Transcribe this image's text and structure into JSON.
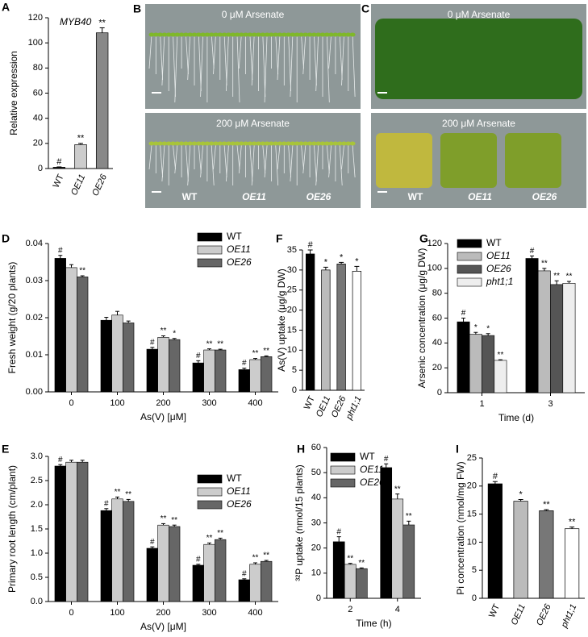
{
  "chart_data": [
    {
      "panel": "A",
      "type": "bar",
      "title": "MYB40",
      "ylabel": "Relative expression",
      "categories": [
        "WT",
        "OE11",
        "OE26"
      ],
      "values": [
        1,
        19,
        108
      ],
      "errors": [
        0.3,
        1,
        4
      ],
      "significance": [
        "#",
        "**",
        "**"
      ],
      "colors": [
        "#111111",
        "#cccccc",
        "#888888"
      ],
      "ylim": [
        0,
        120
      ],
      "yticks": [
        0,
        20,
        40,
        60,
        80,
        100,
        120
      ]
    },
    {
      "panel": "D",
      "type": "grouped-bar",
      "ylabel": "Fresh weight (g/20 plants)",
      "xlabel": "As(V) [μM]",
      "categories": [
        "0",
        "100",
        "200",
        "300",
        "400"
      ],
      "series": [
        {
          "name": "WT",
          "color": "#000000",
          "values": [
            0.036,
            0.0193,
            0.0115,
            0.0078,
            0.006
          ],
          "errors": [
            0.0008,
            0.0008,
            0.0005,
            0.0006,
            0.0004
          ],
          "significance": [
            "#",
            null,
            "#",
            "#",
            "#"
          ]
        },
        {
          "name": "OE11",
          "color": "#cccccc",
          "values": [
            0.0335,
            0.0207,
            0.0147,
            0.0113,
            0.0087
          ],
          "errors": [
            0.0008,
            0.001,
            0.0004,
            0.0003,
            0.0003
          ],
          "significance": [
            null,
            null,
            "**",
            "**",
            "**"
          ]
        },
        {
          "name": "OE26",
          "color": "#666666",
          "values": [
            0.031,
            0.0186,
            0.0141,
            0.0113,
            0.0095
          ],
          "errors": [
            0.0003,
            0.0005,
            0.0003,
            0.0002,
            0.0002
          ],
          "significance": [
            "**",
            null,
            "*",
            "**",
            "**"
          ]
        }
      ],
      "ylim": [
        0,
        0.04
      ],
      "yticks": [
        {
          "value": 0,
          "label": "0.00"
        },
        0.01,
        0.02,
        0.03,
        0.04
      ],
      "legend": "upper right"
    },
    {
      "panel": "F",
      "type": "bar",
      "ylabel": "As(V) uptake (μg/g DW)",
      "categories": [
        "WT",
        "OE11",
        "OE26",
        "pht1;1"
      ],
      "values": [
        34,
        30,
        31.5,
        29.7
      ],
      "errors": [
        1,
        0.7,
        0.4,
        1.2
      ],
      "significance": [
        "#",
        "*",
        "*",
        "*"
      ],
      "colors": [
        "#000000",
        "#bbbbbb",
        "#777777",
        "#ffffff"
      ],
      "ylim": [
        0,
        35
      ],
      "yticks": [
        0,
        5,
        10,
        15,
        20,
        25,
        30,
        35
      ]
    },
    {
      "panel": "G",
      "type": "grouped-bar",
      "ylabel": "Arsenic concentration (μg/g DW)",
      "xlabel": "Time (d)",
      "categories": [
        "1",
        "3"
      ],
      "series": [
        {
          "name": "WT",
          "color": "#000000",
          "values": [
            57,
            108
          ],
          "errors": [
            3,
            2
          ],
          "significance": [
            "#",
            "#"
          ]
        },
        {
          "name": "OE11",
          "color": "#bbbbbb",
          "values": [
            47,
            98
          ],
          "errors": [
            1.5,
            2
          ],
          "significance": [
            "*",
            "**"
          ]
        },
        {
          "name": "OE26",
          "color": "#555555",
          "values": [
            46,
            87
          ],
          "errors": [
            1.5,
            3
          ],
          "significance": [
            "*",
            "**"
          ]
        },
        {
          "name": "pht1;1",
          "color": "#eeeeee",
          "values": [
            26,
            88
          ],
          "errors": [
            0.5,
            1.5
          ],
          "significance": [
            "**",
            "**"
          ]
        }
      ],
      "ylim": [
        0,
        120
      ],
      "yticks": [
        0,
        20,
        40,
        60,
        80,
        100,
        120
      ],
      "legend": "upper left"
    },
    {
      "panel": "E",
      "type": "grouped-bar",
      "ylabel": "Primary root length (cm/plant)",
      "xlabel": "As(V) [μM]",
      "categories": [
        "0",
        "100",
        "200",
        "300",
        "400"
      ],
      "series": [
        {
          "name": "WT",
          "color": "#000000",
          "values": [
            2.8,
            1.88,
            1.1,
            0.75,
            0.45
          ],
          "errors": [
            0.03,
            0.04,
            0.03,
            0.02,
            0.02
          ],
          "significance": [
            "#",
            "#",
            "#",
            "#",
            "#"
          ]
        },
        {
          "name": "OE11",
          "color": "#cccccc",
          "values": [
            2.88,
            2.12,
            1.58,
            1.18,
            0.77
          ],
          "errors": [
            0.04,
            0.04,
            0.03,
            0.03,
            0.03
          ],
          "significance": [
            null,
            "**",
            "**",
            "**",
            "**"
          ]
        },
        {
          "name": "OE26",
          "color": "#666666",
          "values": [
            2.88,
            2.07,
            1.55,
            1.28,
            0.83
          ],
          "errors": [
            0.04,
            0.04,
            0.03,
            0.03,
            0.02
          ],
          "significance": [
            null,
            "**",
            "**",
            "**",
            "**"
          ]
        }
      ],
      "ylim": [
        0,
        3
      ],
      "yticks": [
        {
          "value": 0,
          "label": "0.0"
        },
        0.5,
        {
          "value": 1,
          "label": "1.0"
        },
        1.5,
        {
          "value": 2,
          "label": "2.0"
        },
        2.5,
        {
          "value": 3,
          "label": "3.0"
        }
      ],
      "legend": "upper right"
    },
    {
      "panel": "H",
      "type": "grouped-bar",
      "ylabel": "³²P uptake (nmol/15 plants)",
      "xlabel": "Time (h)",
      "categories": [
        "2",
        "4"
      ],
      "series": [
        {
          "name": "WT",
          "color": "#000000",
          "values": [
            22.5,
            52
          ],
          "errors": [
            2,
            1.5
          ],
          "significance": [
            "#",
            "#"
          ]
        },
        {
          "name": "OE11",
          "color": "#cccccc",
          "values": [
            13.5,
            39.5
          ],
          "errors": [
            0.4,
            2
          ],
          "significance": [
            "**",
            "**"
          ]
        },
        {
          "name": "OE26",
          "color": "#666666",
          "values": [
            11.8,
            29.2
          ],
          "errors": [
            0.3,
            1.5
          ],
          "significance": [
            "**",
            "**"
          ]
        }
      ],
      "ylim": [
        0,
        60
      ],
      "yticks": [
        0,
        10,
        20,
        30,
        40,
        50,
        60
      ],
      "legend": "upper left"
    },
    {
      "panel": "I",
      "type": "bar",
      "ylabel": "Pi concentration (nmol/mg FW)",
      "categories": [
        "WT",
        "OE11",
        "OE26",
        "pht1;1"
      ],
      "values": [
        20.4,
        17.3,
        15.6,
        12.4
      ],
      "errors": [
        0.4,
        0.3,
        0.2,
        0.3
      ],
      "significance": [
        "#",
        "*",
        "**",
        "**"
      ],
      "colors": [
        "#000000",
        "#bbbbbb",
        "#777777",
        "#ffffff"
      ],
      "ylim": [
        0,
        25
      ],
      "yticks": [
        0,
        5,
        10,
        15,
        20,
        25
      ]
    }
  ],
  "photo_panels": [
    {
      "panel": "B",
      "top_label": "0 μM Arsenate",
      "bottom_label": "200 μM Arsenate",
      "genotypes": [
        "WT",
        "OE11",
        "OE26"
      ]
    },
    {
      "panel": "C",
      "top_label": "0 μM Arsenate",
      "bottom_label": "200 μM Arsenate",
      "genotypes": [
        "WT",
        "OE11",
        "OE26"
      ]
    }
  ]
}
